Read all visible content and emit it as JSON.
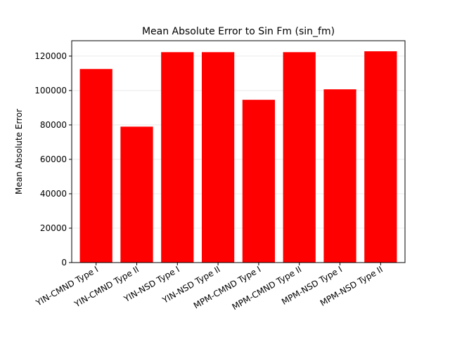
{
  "chart_data": {
    "type": "bar",
    "title": "Mean Absolute Error to Sin Fm (sin_fm)",
    "xlabel": "",
    "ylabel": "Mean Absolute Error",
    "categories": [
      "YIN-CMND Type I",
      "YIN-CMND Type II",
      "YIN-NSD Type I",
      "YIN-NSD Type II",
      "MPM-CMND Type I",
      "MPM-CMND Type II",
      "MPM-NSD Type I",
      "MPM-NSD Type II"
    ],
    "values": [
      112500,
      79000,
      122300,
      122300,
      94600,
      122300,
      100700,
      122800
    ],
    "ylim": [
      0,
      128940
    ],
    "yticks": [
      0,
      20000,
      40000,
      60000,
      80000,
      100000,
      120000
    ],
    "grid": true,
    "bar_color": "#ff0000"
  }
}
